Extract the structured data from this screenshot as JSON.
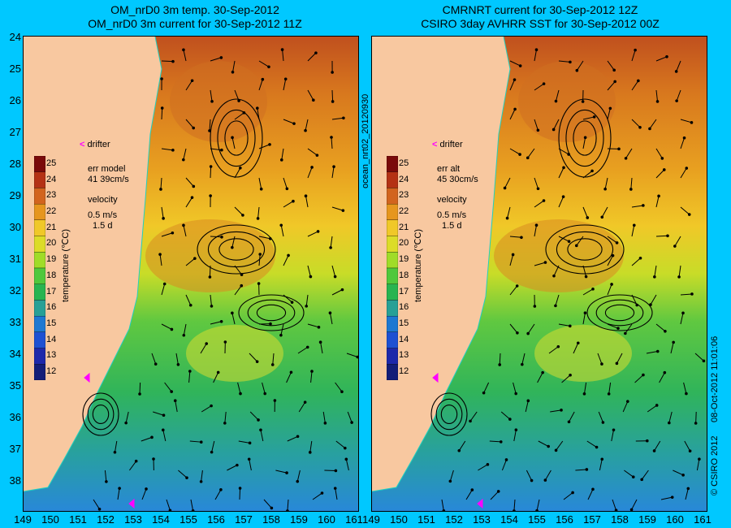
{
  "left_panel": {
    "title_line1": "OM_nrD0 3m temp. 30-Sep-2012",
    "title_line2": "OM_nrD0 3m current for 30-Sep-2012 11Z",
    "err_label": "err model",
    "err_value": "41 39cm/s",
    "velocity_label": "velocity",
    "velocity_scale": "0.5 m/s",
    "velocity_time": "1.5 d"
  },
  "right_panel": {
    "title_line1": "CMRNRT current for 30-Sep-2012 12Z",
    "title_line2": "CSIRO 3day AVHRR SST for 30-Sep-2012 00Z",
    "err_label": "err alt",
    "err_value": "45 30cm/s",
    "velocity_label": "velocity",
    "velocity_scale": "0.5 m/s",
    "velocity_time": "1.5 d"
  },
  "drifter_label": "drifter",
  "colorbar": {
    "title": "temperature (℃C)",
    "ticks": [
      "25",
      "24",
      "23",
      "22",
      "21",
      "20",
      "19",
      "18",
      "17",
      "16",
      "15",
      "14",
      "13",
      "12"
    ],
    "colors": [
      "#7a0a0a",
      "#b43214",
      "#d2641e",
      "#e6961e",
      "#f0c828",
      "#dcdc28",
      "#a0dc28",
      "#50c83c",
      "#28b450",
      "#28a096",
      "#1e78d2",
      "#1e50d2",
      "#1e28aa",
      "#141e78"
    ]
  },
  "y_ticks": [
    "24",
    "25",
    "26",
    "27",
    "28",
    "29",
    "30",
    "31",
    "32",
    "33",
    "34",
    "35",
    "36",
    "37",
    "38"
  ],
  "x_ticks": [
    "149",
    "150",
    "151",
    "152",
    "153",
    "154",
    "155",
    "156",
    "157",
    "158",
    "159",
    "160",
    "161"
  ],
  "side_label_left": "ocean_nrt02_20120930",
  "side_label_right": "08-Oct-2012 11:01:06",
  "credit": "© CSIRO 2012",
  "colors": {
    "background": "#00c8ff",
    "land": "#f8c8a0",
    "drifter": "#ff00ff"
  }
}
